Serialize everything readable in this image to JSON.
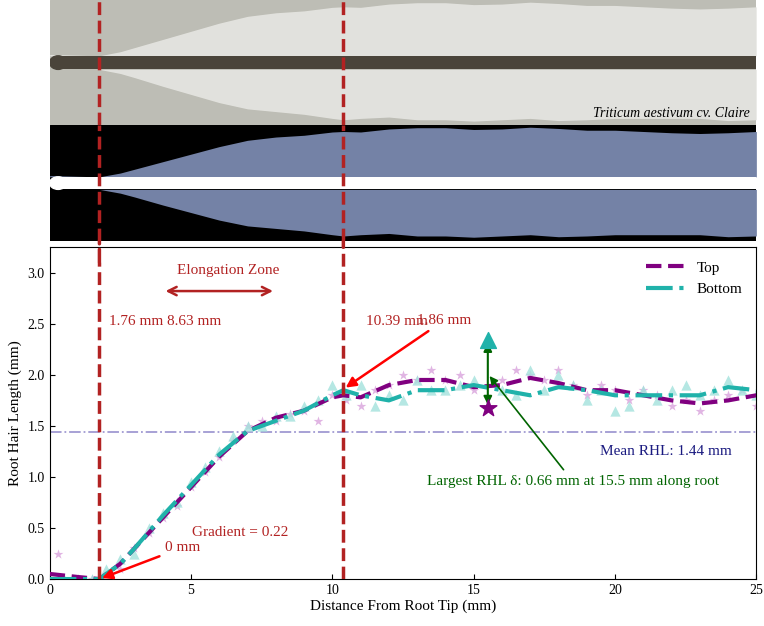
{
  "chart_data": {
    "type": "line",
    "image_caption": "Triticum aestivum cv. Claire",
    "x_label": "Distance From Root Tip (mm)",
    "y_label": "Root Hair Length (mm)",
    "xlim": [
      0,
      25
    ],
    "xticks": [
      0,
      5,
      10,
      15,
      20,
      25
    ],
    "ylim": [
      0,
      3.25
    ],
    "yticks": [
      {
        "value": 0,
        "label": "0.0"
      },
      {
        "value": 0.5,
        "label": "0.5"
      },
      {
        "value": 1.0,
        "label": "1.0"
      },
      {
        "value": 1.5,
        "label": "1.5"
      },
      {
        "value": 2.0,
        "label": "2.0"
      },
      {
        "value": 2.5,
        "label": "2.5"
      },
      {
        "value": 3.0,
        "label": "3.0"
      }
    ],
    "grid": false,
    "legend": "upper right",
    "series": [
      {
        "name": "Top",
        "color": "#800080",
        "line_style": "dashed",
        "x": [
          0,
          1,
          1.76,
          2.5,
          3,
          4,
          5,
          6,
          7,
          8,
          9,
          10,
          10.39,
          11,
          12,
          13,
          14,
          15,
          16,
          17,
          18,
          19,
          20,
          21,
          22,
          23,
          24,
          25
        ],
        "values": [
          0.05,
          0.02,
          0,
          0.15,
          0.3,
          0.6,
          0.9,
          1.2,
          1.45,
          1.58,
          1.65,
          1.78,
          1.8,
          1.78,
          1.9,
          1.95,
          1.95,
          1.88,
          1.9,
          1.97,
          1.92,
          1.85,
          1.85,
          1.8,
          1.75,
          1.72,
          1.75,
          1.8
        ],
        "points": {
          "marker": "star",
          "color": "#d9a3dc",
          "x": [
            0.3,
            1.0,
            1.5,
            2.5,
            3.0,
            3.5,
            4.0,
            4.5,
            5.0,
            5.5,
            6.0,
            6.5,
            7.0,
            7.5,
            8.0,
            8.5,
            9.0,
            9.5,
            10.0,
            10.5,
            11.0,
            11.5,
            12.0,
            12.5,
            13.0,
            13.5,
            14.0,
            14.5,
            15.0,
            15.5,
            16.0,
            16.5,
            17.0,
            17.5,
            18.0,
            18.5,
            19.0,
            19.5,
            20.0,
            20.5,
            21.0,
            21.5,
            22.0,
            22.5,
            23.0,
            23.5,
            24.0,
            24.5,
            25.0
          ],
          "values": [
            0.25,
            0.0,
            0.0,
            0.1,
            0.3,
            0.45,
            0.6,
            0.72,
            0.9,
            1.05,
            1.2,
            1.35,
            1.5,
            1.55,
            1.55,
            1.62,
            1.65,
            1.55,
            1.8,
            1.75,
            1.7,
            1.85,
            1.9,
            2.0,
            1.95,
            2.05,
            1.95,
            2.0,
            1.85,
            1.68,
            1.95,
            2.05,
            2.0,
            1.95,
            2.05,
            1.9,
            1.8,
            1.9,
            1.85,
            1.75,
            1.85,
            1.8,
            1.7,
            1.75,
            1.65,
            1.75,
            1.8,
            1.85,
            1.7
          ]
        }
      },
      {
        "name": "Bottom",
        "color": "#20b2aa",
        "line_style": "dashdot",
        "x": [
          0,
          1,
          1.76,
          2.5,
          3,
          4,
          5,
          6,
          7,
          8,
          9,
          10,
          10.39,
          11,
          12,
          13,
          14,
          15,
          16,
          17,
          18,
          19,
          20,
          21,
          22,
          23,
          24,
          25
        ],
        "values": [
          0,
          0,
          0,
          0.15,
          0.3,
          0.62,
          0.92,
          1.22,
          1.45,
          1.55,
          1.65,
          1.8,
          1.85,
          1.8,
          1.75,
          1.85,
          1.85,
          1.9,
          1.85,
          1.8,
          1.88,
          1.85,
          1.8,
          1.8,
          1.8,
          1.8,
          1.88,
          1.85
        ],
        "points": {
          "marker": "triangle",
          "color": "#a3e2dc",
          "x": [
            0.5,
            1.0,
            1.5,
            2.0,
            2.5,
            3.0,
            3.5,
            4.0,
            4.5,
            5.0,
            5.5,
            6.0,
            6.5,
            7.0,
            7.5,
            8.0,
            8.5,
            9.0,
            9.5,
            10.0,
            10.5,
            11.0,
            11.5,
            12.0,
            12.5,
            13.0,
            13.5,
            14.0,
            14.5,
            15.0,
            15.5,
            16.0,
            16.5,
            17.0,
            17.5,
            18.0,
            18.5,
            19.0,
            19.5,
            20.0,
            20.5,
            21.0,
            21.5,
            22.0,
            22.5,
            23.0,
            23.5,
            24.0,
            24.5,
            25.0
          ],
          "values": [
            0.0,
            0.0,
            0.0,
            0.1,
            0.2,
            0.25,
            0.5,
            0.65,
            0.75,
            0.95,
            1.1,
            1.25,
            1.4,
            1.5,
            1.5,
            1.6,
            1.6,
            1.7,
            1.75,
            1.9,
            1.8,
            1.9,
            1.7,
            1.8,
            1.75,
            1.95,
            1.85,
            1.85,
            1.9,
            1.95,
            2.34,
            1.85,
            1.8,
            2.05,
            1.85,
            2.0,
            1.9,
            1.75,
            1.85,
            1.65,
            1.7,
            1.85,
            1.75,
            1.85,
            1.9,
            1.8,
            1.85,
            1.95,
            1.85,
            1.8
          ]
        }
      }
    ],
    "zone": {
      "label": "Elongation Zone",
      "start": 1.76,
      "start_label": "1.76 mm",
      "end": 10.39,
      "end_label": "10.39 mm",
      "length_label": "8.63 mm",
      "color": "#b22222"
    },
    "annotations": [
      {
        "text": "1.86 mm",
        "x": 10.39,
        "y": 1.86
      },
      {
        "text": "0 mm",
        "x": 1.76,
        "y": 0
      },
      {
        "text": "Gradient = 0.22"
      }
    ],
    "mean": {
      "value": 1.44,
      "label": "Mean RHL: 1.44 mm",
      "color": "#a09ad2"
    },
    "highlight": {
      "x": 15.5,
      "top": 1.68,
      "bottom": 2.34,
      "text": "Largest RHL δ: 0.66 mm at 15.5 mm along root",
      "color": "#006400"
    }
  }
}
